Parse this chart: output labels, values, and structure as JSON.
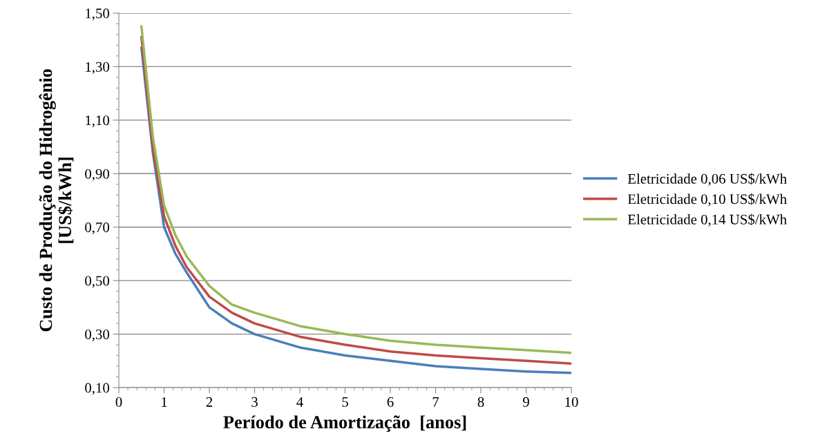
{
  "chart_data": {
    "type": "line",
    "xlabel": "Período de Amortização  [anos]",
    "ylabel": "Custo de Produção do Hidrogênio\n[US$/kWh]",
    "x": [
      0.5,
      0.75,
      1,
      1.25,
      1.5,
      2,
      2.5,
      3,
      4,
      5,
      6,
      7,
      8,
      9,
      10
    ],
    "series": [
      {
        "name": "Eletricidade 0,06 US$/kWh",
        "color": "#4a7ebb",
        "values": [
          1.37,
          0.98,
          0.7,
          0.6,
          0.53,
          0.4,
          0.34,
          0.3,
          0.25,
          0.22,
          0.2,
          0.18,
          0.17,
          0.16,
          0.155
        ]
      },
      {
        "name": "Eletricidade 0,10 US$/kWh",
        "color": "#be4b48",
        "values": [
          1.41,
          1.0,
          0.74,
          0.63,
          0.55,
          0.44,
          0.38,
          0.34,
          0.29,
          0.26,
          0.235,
          0.22,
          0.21,
          0.2,
          0.19
        ]
      },
      {
        "name": "Eletricidade 0,14 US$/kWh",
        "color": "#98b954",
        "values": [
          1.45,
          1.04,
          0.78,
          0.67,
          0.59,
          0.48,
          0.41,
          0.38,
          0.33,
          0.3,
          0.275,
          0.26,
          0.25,
          0.24,
          0.23
        ]
      }
    ],
    "xlim": [
      0,
      10
    ],
    "xticks": [
      0,
      1,
      2,
      3,
      4,
      5,
      6,
      7,
      8,
      9,
      10
    ],
    "ylim": [
      0.1,
      1.5
    ],
    "yticks": [
      {
        "value": 0.1,
        "label": "0,10"
      },
      {
        "value": 0.3,
        "label": "0,30"
      },
      {
        "value": 0.5,
        "label": "0,50"
      },
      {
        "value": 0.7,
        "label": "0,70"
      },
      {
        "value": 0.9,
        "label": "0,90"
      },
      {
        "value": 1.1,
        "label": "1,10"
      },
      {
        "value": 1.3,
        "label": "1,30"
      },
      {
        "value": 1.5,
        "label": "1,50"
      }
    ],
    "grid": "y",
    "legend": "right",
    "marker": "none",
    "line_style": "solid"
  }
}
